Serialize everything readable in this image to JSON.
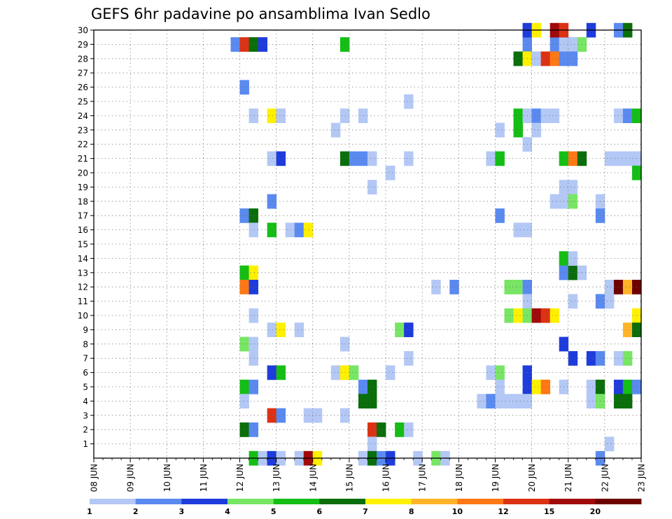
{
  "chart_data": {
    "type": "heatmap",
    "title": "GEFS 6hr padavine po ansamblima Ivan Sedlo",
    "y_members": [
      "1",
      "2",
      "3",
      "4",
      "5",
      "6",
      "7",
      "8",
      "9",
      "10",
      "11",
      "12",
      "13",
      "14",
      "15",
      "16",
      "17",
      "18",
      "19",
      "20",
      "21",
      "22",
      "23",
      "24",
      "25",
      "26",
      "27",
      "28",
      "29",
      "30"
    ],
    "x_days": [
      "08 JUN",
      "09 JUN",
      "10 JUN",
      "11 JUN",
      "12 JUN",
      "13 JUN",
      "14 JUN",
      "15 JUN",
      "16 JUN",
      "17 JUN",
      "18 JUN",
      "19 JUN",
      "20 JUN",
      "21 JUN",
      "22 JUN",
      "23 JUN"
    ],
    "x_range": [
      0,
      15
    ],
    "y_range": [
      0,
      30
    ],
    "grid": true,
    "colorbar_labels": [
      "1",
      "2",
      "3",
      "4",
      "5",
      "6",
      "7",
      "8",
      "10",
      "12",
      "15",
      "20"
    ],
    "colorbar_colors": [
      "#b4c8f5",
      "#5a8af0",
      "#1e3cdc",
      "#78e664",
      "#14be14",
      "#0a6e0a",
      "#fff000",
      "#ffb428",
      "#ff7814",
      "#dc3214",
      "#a00a0a",
      "#6e0000"
    ],
    "cells": [
      [
        3.75,
        29,
        2
      ],
      [
        4.0,
        29,
        10
      ],
      [
        4.25,
        29,
        6
      ],
      [
        4.5,
        29,
        3
      ],
      [
        6.75,
        29,
        5
      ],
      [
        11.75,
        29,
        2
      ],
      [
        12.5,
        29,
        2
      ],
      [
        12.75,
        29,
        1
      ],
      [
        13.0,
        29,
        1
      ],
      [
        13.25,
        29,
        4
      ],
      [
        11.5,
        28,
        6
      ],
      [
        11.75,
        28,
        7
      ],
      [
        12.0,
        28,
        1
      ],
      [
        12.25,
        28,
        10
      ],
      [
        12.5,
        28,
        9
      ],
      [
        12.75,
        28,
        2
      ],
      [
        13.0,
        28,
        2
      ],
      [
        11.75,
        30,
        3
      ],
      [
        12.0,
        30,
        7
      ],
      [
        12.5,
        30,
        11
      ],
      [
        12.75,
        30,
        10
      ],
      [
        13.5,
        30,
        3
      ],
      [
        14.25,
        30,
        2
      ],
      [
        14.5,
        30,
        6
      ],
      [
        4.0,
        26,
        2
      ],
      [
        8.5,
        25,
        1
      ],
      [
        11.5,
        24,
        5
      ],
      [
        11.75,
        24,
        1
      ],
      [
        12.0,
        24,
        2
      ],
      [
        12.25,
        24,
        1
      ],
      [
        12.5,
        24,
        1
      ],
      [
        14.25,
        24,
        1
      ],
      [
        14.5,
        24,
        2
      ],
      [
        14.75,
        24,
        5
      ],
      [
        4.25,
        24,
        1
      ],
      [
        4.75,
        24,
        7
      ],
      [
        5.0,
        24,
        1
      ],
      [
        6.75,
        24,
        1
      ],
      [
        7.25,
        24,
        1
      ],
      [
        6.5,
        23,
        1
      ],
      [
        11.0,
        23,
        1
      ],
      [
        11.5,
        23,
        5
      ],
      [
        12.0,
        23,
        1
      ],
      [
        11.75,
        22,
        1
      ],
      [
        4.75,
        21,
        1
      ],
      [
        5.0,
        21,
        3
      ],
      [
        6.75,
        21,
        6
      ],
      [
        7.0,
        21,
        2
      ],
      [
        7.25,
        21,
        2
      ],
      [
        7.5,
        21,
        1
      ],
      [
        8.5,
        21,
        1
      ],
      [
        10.75,
        21,
        1
      ],
      [
        11.0,
        21,
        5
      ],
      [
        12.75,
        21,
        5
      ],
      [
        13.0,
        21,
        9
      ],
      [
        13.25,
        21,
        6
      ],
      [
        14.0,
        21,
        1
      ],
      [
        14.25,
        21,
        1
      ],
      [
        14.5,
        21,
        1
      ],
      [
        14.75,
        21,
        1
      ],
      [
        8.0,
        20,
        1
      ],
      [
        14.75,
        20,
        5
      ],
      [
        12.75,
        19,
        1
      ],
      [
        13.0,
        19,
        1
      ],
      [
        7.5,
        19,
        1
      ],
      [
        4.75,
        18,
        2
      ],
      [
        12.5,
        18,
        1
      ],
      [
        12.75,
        18,
        1
      ],
      [
        13.0,
        18,
        4
      ],
      [
        13.75,
        18,
        1
      ],
      [
        4.0,
        17,
        2
      ],
      [
        4.25,
        17,
        6
      ],
      [
        11.0,
        17,
        2
      ],
      [
        13.75,
        17,
        2
      ],
      [
        4.25,
        16,
        1
      ],
      [
        4.75,
        16,
        5
      ],
      [
        5.25,
        16,
        1
      ],
      [
        5.5,
        16,
        2
      ],
      [
        5.75,
        16,
        7
      ],
      [
        11.5,
        16,
        1
      ],
      [
        11.75,
        16,
        1
      ],
      [
        12.75,
        14,
        5
      ],
      [
        12.75,
        13,
        2
      ],
      [
        13.0,
        13,
        6
      ],
      [
        13.0,
        14,
        1
      ],
      [
        13.25,
        13,
        1
      ],
      [
        4.0,
        13,
        5
      ],
      [
        4.25,
        13,
        7
      ],
      [
        4.0,
        12,
        9
      ],
      [
        4.25,
        12,
        3
      ],
      [
        9.25,
        12,
        1
      ],
      [
        9.75,
        12,
        2
      ],
      [
        11.25,
        12,
        4
      ],
      [
        11.5,
        12,
        4
      ],
      [
        11.75,
        12,
        2
      ],
      [
        14.0,
        12,
        1
      ],
      [
        14.25,
        12,
        12
      ],
      [
        14.5,
        12,
        8
      ],
      [
        14.75,
        12,
        12
      ],
      [
        11.75,
        11,
        1
      ],
      [
        13.0,
        11,
        1
      ],
      [
        13.75,
        11,
        2
      ],
      [
        14.0,
        11,
        1
      ],
      [
        4.25,
        10,
        1
      ],
      [
        11.25,
        10,
        4
      ],
      [
        11.5,
        10,
        7
      ],
      [
        11.75,
        10,
        4
      ],
      [
        12.0,
        10,
        11
      ],
      [
        12.25,
        10,
        10
      ],
      [
        12.5,
        10,
        7
      ],
      [
        14.75,
        10,
        7
      ],
      [
        4.75,
        9,
        1
      ],
      [
        5.0,
        9,
        7
      ],
      [
        5.5,
        9,
        1
      ],
      [
        8.25,
        9,
        4
      ],
      [
        8.5,
        9,
        3
      ],
      [
        14.5,
        9,
        8
      ],
      [
        14.75,
        9,
        6
      ],
      [
        4.0,
        8,
        4
      ],
      [
        4.25,
        8,
        1
      ],
      [
        6.75,
        8,
        1
      ],
      [
        12.75,
        8,
        3
      ],
      [
        4.25,
        7,
        1
      ],
      [
        8.5,
        7,
        1
      ],
      [
        13.0,
        7,
        3
      ],
      [
        13.5,
        7,
        3
      ],
      [
        13.75,
        7,
        2
      ],
      [
        14.25,
        7,
        1
      ],
      [
        14.5,
        7,
        4
      ],
      [
        4.75,
        6,
        3
      ],
      [
        5.0,
        6,
        5
      ],
      [
        6.5,
        6,
        1
      ],
      [
        6.75,
        6,
        7
      ],
      [
        7.0,
        6,
        4
      ],
      [
        8.0,
        6,
        1
      ],
      [
        10.75,
        6,
        1
      ],
      [
        11.0,
        6,
        4
      ],
      [
        11.75,
        6,
        3
      ],
      [
        4.0,
        5,
        5
      ],
      [
        4.25,
        5,
        2
      ],
      [
        7.25,
        5,
        2
      ],
      [
        7.5,
        5,
        6
      ],
      [
        11.0,
        5,
        1
      ],
      [
        11.75,
        5,
        3
      ],
      [
        12.0,
        5,
        7
      ],
      [
        12.25,
        5,
        9
      ],
      [
        12.75,
        5,
        1
      ],
      [
        13.5,
        5,
        1
      ],
      [
        13.75,
        5,
        6
      ],
      [
        14.25,
        5,
        3
      ],
      [
        14.5,
        5,
        5
      ],
      [
        14.75,
        5,
        2
      ],
      [
        4.0,
        4,
        1
      ],
      [
        7.25,
        4,
        6
      ],
      [
        7.5,
        4,
        6
      ],
      [
        10.5,
        4,
        1
      ],
      [
        10.75,
        4,
        2
      ],
      [
        11.0,
        4,
        1
      ],
      [
        11.25,
        4,
        1
      ],
      [
        11.5,
        4,
        1
      ],
      [
        11.75,
        4,
        1
      ],
      [
        13.5,
        4,
        1
      ],
      [
        13.75,
        4,
        4
      ],
      [
        14.25,
        4,
        6
      ],
      [
        14.5,
        4,
        6
      ],
      [
        4.75,
        3,
        10
      ],
      [
        5.0,
        3,
        2
      ],
      [
        5.75,
        3,
        1
      ],
      [
        6.0,
        3,
        1
      ],
      [
        6.75,
        3,
        1
      ],
      [
        4.0,
        2,
        6
      ],
      [
        4.25,
        2,
        2
      ],
      [
        7.5,
        2,
        10
      ],
      [
        7.75,
        2,
        6
      ],
      [
        8.25,
        2,
        5
      ],
      [
        8.5,
        2,
        1
      ],
      [
        14.0,
        1,
        1
      ],
      [
        7.5,
        1,
        1
      ],
      [
        4.25,
        0,
        5
      ],
      [
        4.5,
        0,
        1
      ],
      [
        4.75,
        0,
        3
      ],
      [
        5.0,
        0,
        1
      ],
      [
        5.5,
        0,
        1
      ],
      [
        5.75,
        0,
        11
      ],
      [
        6.0,
        0,
        7
      ],
      [
        7.25,
        0,
        1
      ],
      [
        7.5,
        0,
        6
      ],
      [
        7.75,
        0,
        2
      ],
      [
        8.0,
        0,
        3
      ],
      [
        8.75,
        0,
        1
      ],
      [
        9.25,
        0,
        4
      ],
      [
        9.5,
        0,
        1
      ],
      [
        13.75,
        0,
        2
      ]
    ]
  }
}
